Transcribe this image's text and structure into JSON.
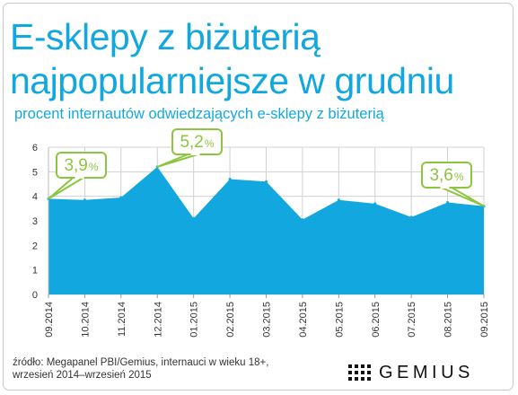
{
  "title_line1": "E-sklepy z biżuterią",
  "title_line2": "najpopularniejsze w grudniu",
  "subtitle": "procent  internautów odwiedzających e-sklepy z biżuterią",
  "source_line1": "źródło: Megapanel PBI/Gemius, internauci w wieku 18+,",
  "source_line2": "wrzesień 2014–wrzesień 2015",
  "logo_text": "GEMIUS",
  "colors": {
    "accent": "#12a8df",
    "callout": "#8cc63f",
    "grid": "#d0d0d0",
    "frame": "#c9c9c9"
  },
  "chart_data": {
    "type": "area",
    "categories": [
      "09.2014",
      "10.2014",
      "11.2014",
      "12.2014",
      "01.2015",
      "02.2015",
      "03.2015",
      "04.2015",
      "05.2015",
      "06.2015",
      "07.2015",
      "08.2015",
      "09.2015"
    ],
    "values": [
      3.9,
      3.85,
      3.95,
      5.2,
      3.1,
      4.7,
      4.6,
      3.05,
      3.85,
      3.7,
      3.15,
      3.75,
      3.6
    ],
    "yticks": [
      "0",
      "1",
      "2",
      "3",
      "4",
      "5",
      "6"
    ],
    "ylim": [
      0,
      6
    ],
    "grid": true,
    "annotations": [
      {
        "index": 0,
        "number": "3,9",
        "unit": "%"
      },
      {
        "index": 3,
        "number": "5,2",
        "unit": "%"
      },
      {
        "index": 12,
        "number": "3,6",
        "unit": "%"
      }
    ]
  }
}
